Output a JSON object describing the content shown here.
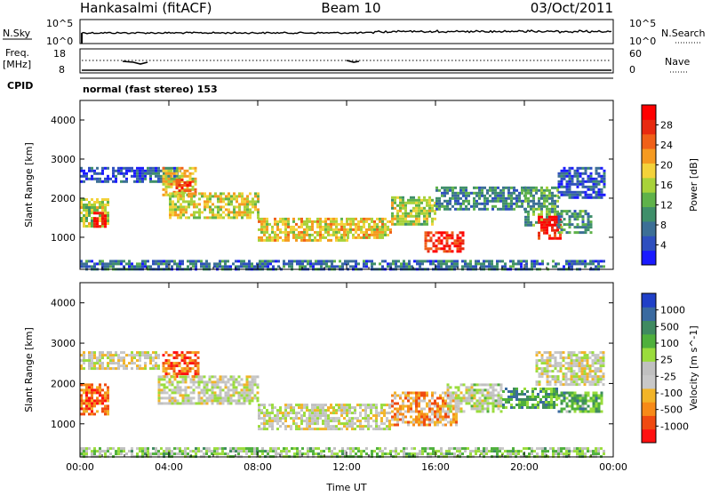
{
  "header": {
    "station": "Hankasalmi (fitACF)",
    "beam": "Beam 10",
    "date": "03/Oct/2011"
  },
  "strip": {
    "nsky_label": "N.Sky",
    "nsearch_label": "N.Search",
    "nsky_ticks": [
      "10^5",
      "10^0"
    ],
    "nsearch_ticks": [
      "10^5",
      "10^0"
    ],
    "freq_label_line1": "Freq.",
    "freq_label_line2": "[MHz]",
    "freq_ticks": [
      "18",
      "8"
    ],
    "nave_label": "Nave",
    "nave_ticks": [
      "60",
      "0"
    ],
    "cpid_label": "CPID",
    "cpid_text": "normal (fast stereo) 153"
  },
  "colors": {
    "power_scale": [
      "#1a1aff",
      "#2e4fbf",
      "#3c6f96",
      "#3f8f6a",
      "#5fb24a",
      "#a8d23a",
      "#f3d23a",
      "#f59a20",
      "#f06018",
      "#e82a10",
      "#ff0000"
    ],
    "velocity_scale": [
      "#ff1010",
      "#f04a10",
      "#f78a18",
      "#f2b428",
      "#c8c8c8",
      "#c0c0c0",
      "#9adc3c",
      "#4fb03c",
      "#3f8a60",
      "#3a6aa0",
      "#2040c8"
    ]
  },
  "chart_data": [
    {
      "type": "heatmap",
      "name": "power-panel",
      "xlabel": "Time UT",
      "ylabel": "Slant Range [km]",
      "xlim": [
        0,
        24
      ],
      "ylim": [
        180,
        4500
      ],
      "y_ticks": [
        1000,
        2000,
        3000,
        4000
      ],
      "x_ticks": [
        0,
        4,
        8,
        12,
        16,
        20,
        24
      ],
      "x_tick_labels": [
        "00:00",
        "04:00",
        "08:00",
        "12:00",
        "16:00",
        "20:00",
        "00:00"
      ],
      "colorbar_label": "Power [dB]",
      "colorbar_ticks": [
        "28",
        "24",
        "20",
        "16",
        "12",
        "8",
        "4"
      ],
      "regions": [
        {
          "t": [
            0.0,
            1.3
          ],
          "r": [
            1300,
            2000
          ],
          "level": 0.5
        },
        {
          "t": [
            0.6,
            1.1
          ],
          "r": [
            1250,
            1650
          ],
          "level": 0.95
        },
        {
          "t": [
            0.0,
            3.0
          ],
          "r": [
            2400,
            2800
          ],
          "level": 0.1
        },
        {
          "t": [
            3.0,
            4.5
          ],
          "r": [
            2400,
            2800
          ],
          "level": 0.2
        },
        {
          "t": [
            3.7,
            5.2
          ],
          "r": [
            2100,
            2800
          ],
          "level": 0.6
        },
        {
          "t": [
            4.3,
            5.0
          ],
          "r": [
            2200,
            2500
          ],
          "level": 0.9
        },
        {
          "t": [
            4.0,
            8.0
          ],
          "r": [
            1500,
            2150
          ],
          "level": 0.55
        },
        {
          "t": [
            8.0,
            12.0
          ],
          "r": [
            900,
            1500
          ],
          "level": 0.6
        },
        {
          "t": [
            12.0,
            14.0
          ],
          "r": [
            1000,
            1500
          ],
          "level": 0.6
        },
        {
          "t": [
            14.0,
            16.0
          ],
          "r": [
            1300,
            2050
          ],
          "level": 0.5
        },
        {
          "t": [
            15.5,
            17.3
          ],
          "r": [
            650,
            1150
          ],
          "level": 0.95
        },
        {
          "t": [
            16.0,
            20.0
          ],
          "r": [
            1700,
            2300
          ],
          "level": 0.25
        },
        {
          "t": [
            20.0,
            21.5
          ],
          "r": [
            1300,
            2300
          ],
          "level": 0.35
        },
        {
          "t": [
            20.6,
            21.6
          ],
          "r": [
            950,
            1550
          ],
          "level": 1.0
        },
        {
          "t": [
            21.5,
            23.0
          ],
          "r": [
            1100,
            1700
          ],
          "level": 0.3
        },
        {
          "t": [
            21.5,
            23.6
          ],
          "r": [
            2000,
            2800
          ],
          "level": 0.12
        },
        {
          "t": [
            0.0,
            23.6
          ],
          "r": [
            180,
            420
          ],
          "level": 0.2
        }
      ]
    },
    {
      "type": "heatmap",
      "name": "velocity-panel",
      "xlabel": "Time UT",
      "ylabel": "Slant Range [km]",
      "xlim": [
        0,
        24
      ],
      "ylim": [
        180,
        4500
      ],
      "y_ticks": [
        1000,
        2000,
        3000,
        4000
      ],
      "x_ticks": [
        0,
        4,
        8,
        12,
        16,
        20,
        24
      ],
      "x_tick_labels": [
        "00:00",
        "04:00",
        "08:00",
        "12:00",
        "16:00",
        "20:00",
        "00:00"
      ],
      "colorbar_label": "Velocity [m s^-1]",
      "colorbar_ticks": [
        "1000",
        "500",
        "100",
        "25",
        "-25",
        "-100",
        "-500",
        "-1000"
      ],
      "regions": [
        {
          "t": [
            0.0,
            1.3
          ],
          "r": [
            1250,
            2000
          ],
          "level": 0.15
        },
        {
          "t": [
            0.0,
            3.5
          ],
          "r": [
            2400,
            2800
          ],
          "level": 0.45
        },
        {
          "t": [
            3.7,
            5.3
          ],
          "r": [
            2200,
            2800
          ],
          "level": 0.15
        },
        {
          "t": [
            3.5,
            8.0
          ],
          "r": [
            1500,
            2200
          ],
          "level": 0.47
        },
        {
          "t": [
            8.0,
            14.0
          ],
          "r": [
            900,
            1500
          ],
          "level": 0.46
        },
        {
          "t": [
            14.0,
            17.0
          ],
          "r": [
            1000,
            1800
          ],
          "level": 0.25
        },
        {
          "t": [
            16.5,
            19.0
          ],
          "r": [
            1300,
            2000
          ],
          "level": 0.5
        },
        {
          "t": [
            19.0,
            21.5
          ],
          "r": [
            1400,
            1900
          ],
          "level": 0.75
        },
        {
          "t": [
            21.5,
            23.5
          ],
          "r": [
            1300,
            1800
          ],
          "level": 0.7
        },
        {
          "t": [
            20.5,
            23.6
          ],
          "r": [
            2000,
            2800
          ],
          "level": 0.46
        },
        {
          "t": [
            0.0,
            23.6
          ],
          "r": [
            180,
            420
          ],
          "level": 0.6
        }
      ]
    }
  ]
}
